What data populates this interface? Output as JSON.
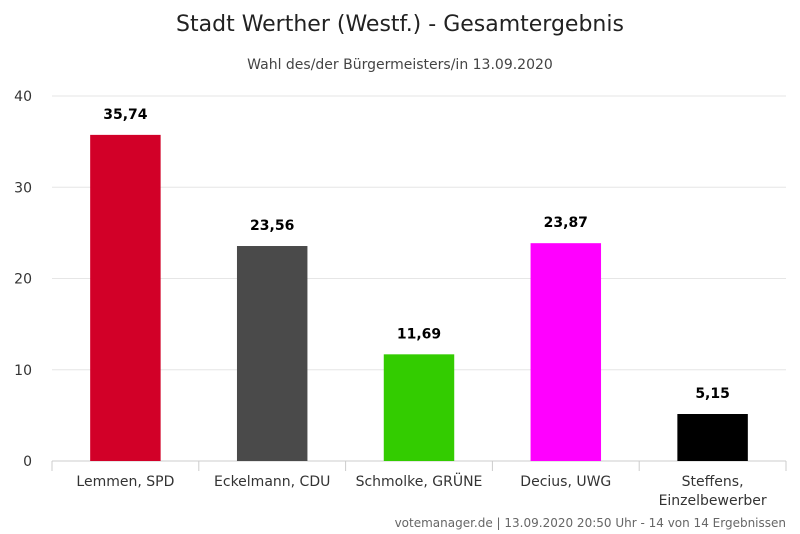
{
  "chart_data": {
    "type": "bar",
    "title": "Stadt Werther (Westf.) - Gesamtergebnis",
    "subtitle": "Wahl des/der Bürgermeisters/in 13.09.2020",
    "categories": [
      [
        "Lemmen, SPD"
      ],
      [
        "Eckelmann, CDU"
      ],
      [
        "Schmolke, GRÜNE"
      ],
      [
        "Decius, UWG"
      ],
      [
        "Steffens,",
        "Einzelbewerber"
      ]
    ],
    "values": [
      35.74,
      23.56,
      11.69,
      23.87,
      5.15
    ],
    "value_labels": [
      "35,74",
      "23,56",
      "11,69",
      "23,87",
      "5,15"
    ],
    "colors": [
      "#d20028",
      "#4a4a4a",
      "#33cc00",
      "#ff00ff",
      "#000000"
    ],
    "ylim": [
      0,
      40
    ],
    "yticks": [
      0,
      10,
      20,
      30,
      40
    ],
    "grid": true,
    "legend": "none"
  },
  "credits": "votemanager.de | 13.09.2020 20:50 Uhr - 14 von 14 Ergebnissen"
}
